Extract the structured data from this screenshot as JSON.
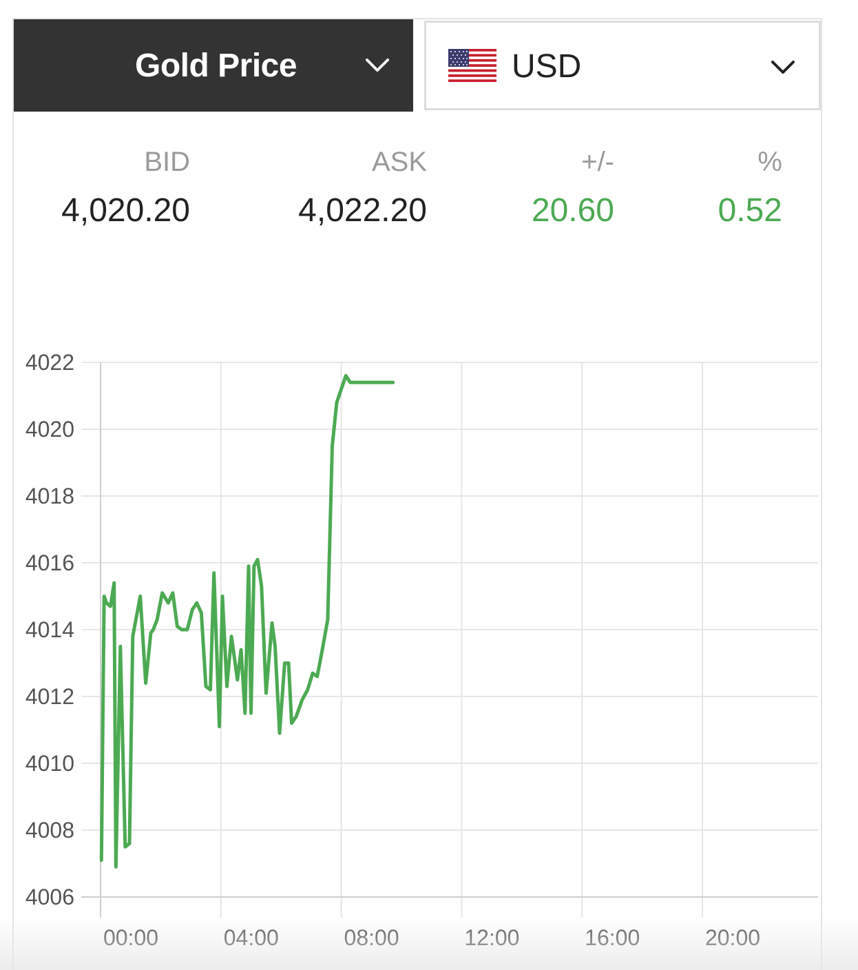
{
  "header": {
    "metal_label": "Gold Price",
    "currency_label": "USD",
    "metal_icon": "chevron-down-icon",
    "currency_icon": "us-flag-icon"
  },
  "quotes": {
    "bid_label": "BID",
    "bid_value": "4,020.20",
    "ask_label": "ASK",
    "ask_value": "4,022.20",
    "change_label": "+/-",
    "change_value": "20.60",
    "percent_label": "%",
    "percent_value": "0.52"
  },
  "colors": {
    "header_bg": "#333333",
    "positive": "#4caa52",
    "line": "#4caa52",
    "grid": "#e6e6e6"
  },
  "chart_data": {
    "type": "line",
    "title": "",
    "xlabel": "",
    "ylabel": "",
    "x_ticks": [
      "00:00",
      "04:00",
      "08:00",
      "12:00",
      "16:00",
      "20:00"
    ],
    "y_ticks": [
      4006,
      4008,
      4010,
      4012,
      4014,
      4016,
      4018,
      4020,
      4022
    ],
    "xlim_hours": [
      0,
      24
    ],
    "ylim": [
      4006,
      4022
    ],
    "grid": true,
    "series": [
      {
        "x": [
          0.03,
          0.12,
          0.2,
          0.33,
          0.45,
          0.51,
          0.66,
          0.82,
          0.96,
          1.07,
          1.32,
          1.5,
          1.67,
          1.75,
          1.88,
          2.05,
          2.25,
          2.4,
          2.55,
          2.7,
          2.88,
          3.05,
          3.2,
          3.35,
          3.5,
          3.65,
          3.77,
          3.95,
          4.05,
          4.2,
          4.35,
          4.55,
          4.67,
          4.8,
          4.92,
          5.0,
          5.1,
          5.22,
          5.35,
          5.5,
          5.7,
          5.8,
          5.95,
          6.12,
          6.25,
          6.35,
          6.5,
          6.7,
          6.88,
          7.05,
          7.2,
          7.35,
          7.55,
          7.7,
          7.85,
          8.0,
          8.15,
          8.3,
          8.45,
          8.6,
          8.75,
          8.9,
          9.0,
          9.1,
          9.25,
          9.4,
          9.55,
          9.72
        ],
        "values": [
          4007.1,
          4015.0,
          4014.8,
          4014.7,
          4015.4,
          4006.9,
          4013.5,
          4007.5,
          4007.6,
          4013.8,
          4015.0,
          4012.4,
          4013.9,
          4014.0,
          4014.3,
          4015.1,
          4014.8,
          4015.1,
          4014.1,
          4014.0,
          4014.0,
          4014.6,
          4014.8,
          4014.5,
          4012.3,
          4012.2,
          4015.7,
          4011.1,
          4015.0,
          4012.3,
          4013.8,
          4012.5,
          4013.4,
          4011.5,
          4015.9,
          4011.5,
          4015.9,
          4016.1,
          4015.3,
          4012.1,
          4014.2,
          4013.5,
          4010.9,
          4013.0,
          4013.0,
          4011.2,
          4011.4,
          4011.9,
          4012.2,
          4012.7,
          4012.6,
          4013.3,
          4014.3,
          4019.5,
          4020.8,
          4021.2,
          4021.6,
          4021.4,
          4021.4,
          4021.4,
          4021.4,
          4021.4,
          4021.4,
          4021.4,
          4021.4,
          4021.4,
          4021.4,
          4021.4
        ]
      }
    ]
  }
}
